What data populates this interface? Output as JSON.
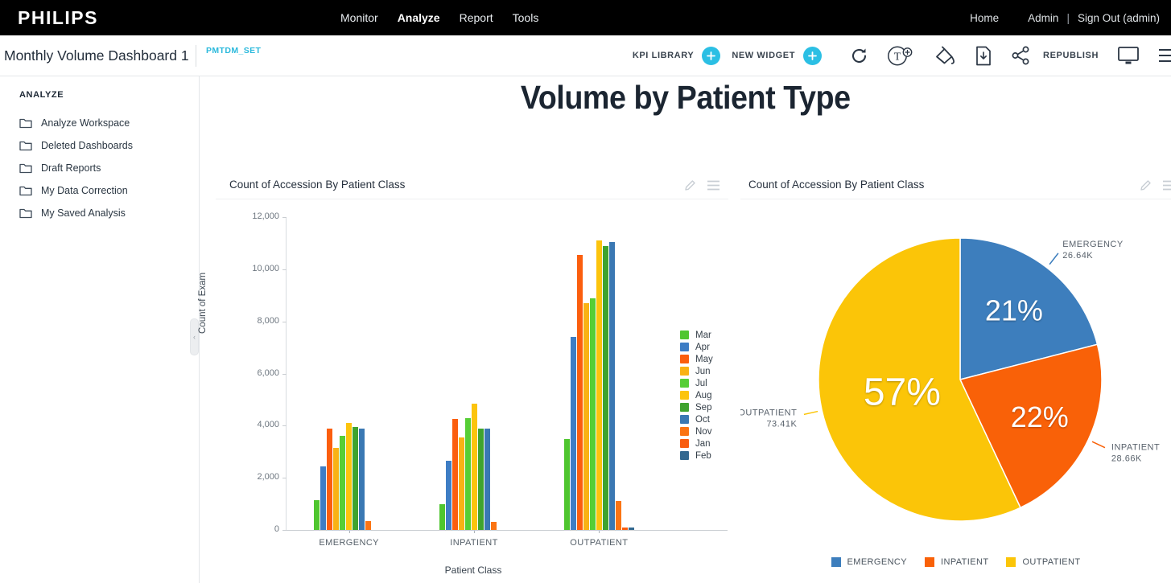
{
  "topbar": {
    "brand": "PHILIPS",
    "nav": [
      {
        "label": "Monitor",
        "active": false
      },
      {
        "label": "Analyze",
        "active": true
      },
      {
        "label": "Report",
        "active": false
      },
      {
        "label": "Tools",
        "active": false
      }
    ],
    "home": "Home",
    "admin": "Admin",
    "separator": "|",
    "signout": "Sign Out (admin)"
  },
  "toolbar": {
    "dashboard_title": "Monthly Volume Dashboard 1",
    "dataset": "PMTDM_SET",
    "kpi_library_label": "KPI LIBRARY",
    "new_widget_label": "NEW WIDGET",
    "republish_label": "REPUBLISH",
    "icons": [
      "refresh",
      "add-text",
      "fill-style",
      "export-document",
      "share",
      "display",
      "menu"
    ],
    "accent_color": "#2bbfe4"
  },
  "sidebar": {
    "section": "ANALYZE",
    "items": [
      {
        "label": "Analyze Workspace"
      },
      {
        "label": "Deleted Dashboards"
      },
      {
        "label": "Draft Reports"
      },
      {
        "label": "My Data Correction"
      },
      {
        "label": "My Saved Analysis"
      }
    ]
  },
  "page_title": "Volume by Patient Type",
  "chart_data": [
    {
      "type": "bar",
      "title": "Count of Accession By Patient Class",
      "xlabel": "Patient Class",
      "ylabel": "Count of Exam",
      "ylim": [
        0,
        12000
      ],
      "yticks": [
        0,
        2000,
        4000,
        6000,
        8000,
        10000,
        12000
      ],
      "grid": false,
      "legend_position": "right",
      "categories": [
        "EMERGENCY",
        "INPATIENT",
        "OUTPATIENT"
      ],
      "series": [
        {
          "name": "Mar",
          "color": "#4fc62f",
          "values": [
            1150,
            1000,
            3500
          ]
        },
        {
          "name": "Apr",
          "color": "#3e7dc4",
          "values": [
            2450,
            2650,
            7400
          ]
        },
        {
          "name": "May",
          "color": "#fb5e0e",
          "values": [
            3900,
            4250,
            10550
          ]
        },
        {
          "name": "Jun",
          "color": "#f9b214",
          "values": [
            3150,
            3550,
            8700
          ]
        },
        {
          "name": "Jul",
          "color": "#56ce35",
          "values": [
            3600,
            4300,
            8900
          ]
        },
        {
          "name": "Aug",
          "color": "#fcc40d",
          "values": [
            4100,
            4850,
            11100
          ]
        },
        {
          "name": "Sep",
          "color": "#3fa32e",
          "values": [
            3950,
            3900,
            10900
          ]
        },
        {
          "name": "Oct",
          "color": "#3a78b3",
          "values": [
            3900,
            3900,
            11050
          ]
        },
        {
          "name": "Nov",
          "color": "#fb7413",
          "values": [
            350,
            300,
            1100
          ]
        },
        {
          "name": "Jan",
          "color": "#f95d0f",
          "values": [
            0,
            0,
            80
          ]
        },
        {
          "name": "Feb",
          "color": "#33688f",
          "values": [
            0,
            0,
            100
          ]
        }
      ]
    },
    {
      "type": "pie",
      "title": "Count of Accession By Patient Class",
      "legend_position": "bottom",
      "start_angle_deg": 0,
      "direction": "clockwise",
      "slices": [
        {
          "label": "EMERGENCY",
          "pct": 21,
          "value_label": "26.64K",
          "color": "#3d7ebd"
        },
        {
          "label": "INPATIENT",
          "pct": 22,
          "value_label": "28.66K",
          "color": "#f96108"
        },
        {
          "label": "OUTPATIENT",
          "pct": 57,
          "value_label": "73.41K",
          "color": "#fbc508"
        }
      ]
    }
  ]
}
